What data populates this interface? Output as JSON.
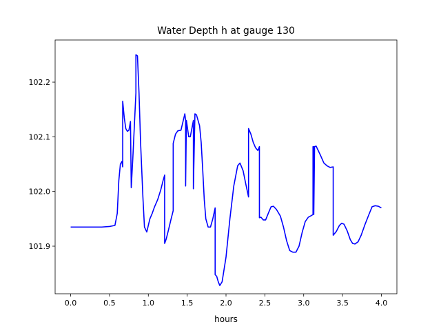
{
  "chart_data": {
    "type": "line",
    "title": "Water Depth h at gauge 130",
    "xlabel": "hours",
    "ylabel": "",
    "xlim": [
      -0.2,
      4.2
    ],
    "ylim": [
      101.813,
      102.277
    ],
    "xticks": [
      0.0,
      0.5,
      1.0,
      1.5,
      2.0,
      2.5,
      3.0,
      3.5,
      4.0
    ],
    "xtick_labels": [
      "0.0",
      "0.5",
      "1.0",
      "1.5",
      "2.0",
      "2.5",
      "3.0",
      "3.5",
      "4.0"
    ],
    "yticks": [
      101.9,
      102.0,
      102.1,
      102.2
    ],
    "ytick_labels": [
      "101.9",
      "102.0",
      "102.1",
      "102.2"
    ],
    "grid": false,
    "series": [
      {
        "color": "#0000ff",
        "points": [
          [
            0.0,
            101.935
          ],
          [
            0.3,
            101.935
          ],
          [
            0.4,
            101.935
          ],
          [
            0.5,
            101.936
          ],
          [
            0.57,
            101.938
          ],
          [
            0.6,
            101.96
          ],
          [
            0.62,
            102.02
          ],
          [
            0.64,
            102.05
          ],
          [
            0.66,
            102.055
          ],
          [
            0.67,
            102.045
          ],
          [
            0.67,
            102.165
          ],
          [
            0.69,
            102.135
          ],
          [
            0.71,
            102.115
          ],
          [
            0.73,
            102.11
          ],
          [
            0.75,
            102.112
          ],
          [
            0.77,
            102.128
          ],
          [
            0.78,
            102.007
          ],
          [
            0.8,
            102.06
          ],
          [
            0.82,
            102.12
          ],
          [
            0.84,
            102.18
          ],
          [
            0.84,
            102.25
          ],
          [
            0.86,
            102.248
          ],
          [
            0.88,
            102.18
          ],
          [
            0.9,
            102.09
          ],
          [
            0.93,
            101.99
          ],
          [
            0.95,
            101.935
          ],
          [
            0.98,
            101.926
          ],
          [
            1.0,
            101.938
          ],
          [
            1.02,
            101.95
          ],
          [
            1.05,
            101.96
          ],
          [
            1.08,
            101.972
          ],
          [
            1.12,
            101.985
          ],
          [
            1.16,
            102.003
          ],
          [
            1.19,
            102.02
          ],
          [
            1.21,
            102.03
          ],
          [
            1.21,
            101.905
          ],
          [
            1.23,
            101.913
          ],
          [
            1.26,
            101.93
          ],
          [
            1.29,
            101.948
          ],
          [
            1.32,
            101.965
          ],
          [
            1.32,
            102.088
          ],
          [
            1.35,
            102.105
          ],
          [
            1.38,
            102.111
          ],
          [
            1.42,
            102.112
          ],
          [
            1.45,
            102.13
          ],
          [
            1.47,
            102.142
          ],
          [
            1.48,
            102.13
          ],
          [
            1.48,
            102.01
          ],
          [
            1.49,
            102.13
          ],
          [
            1.51,
            102.11
          ],
          [
            1.52,
            102.1
          ],
          [
            1.54,
            102.1
          ],
          [
            1.56,
            102.115
          ],
          [
            1.58,
            102.13
          ],
          [
            1.58,
            102.005
          ],
          [
            1.6,
            102.142
          ],
          [
            1.62,
            102.14
          ],
          [
            1.64,
            102.13
          ],
          [
            1.66,
            102.12
          ],
          [
            1.68,
            102.09
          ],
          [
            1.7,
            102.04
          ],
          [
            1.72,
            101.985
          ],
          [
            1.74,
            101.95
          ],
          [
            1.77,
            101.935
          ],
          [
            1.8,
            101.935
          ],
          [
            1.83,
            101.95
          ],
          [
            1.86,
            101.97
          ],
          [
            1.86,
            101.848
          ],
          [
            1.88,
            101.845
          ],
          [
            1.9,
            101.835
          ],
          [
            1.92,
            101.828
          ],
          [
            1.95,
            101.835
          ],
          [
            2.0,
            101.88
          ],
          [
            2.05,
            101.95
          ],
          [
            2.1,
            102.01
          ],
          [
            2.15,
            102.047
          ],
          [
            2.18,
            102.052
          ],
          [
            2.22,
            102.038
          ],
          [
            2.26,
            102.01
          ],
          [
            2.29,
            101.99
          ],
          [
            2.29,
            102.115
          ],
          [
            2.32,
            102.105
          ],
          [
            2.35,
            102.09
          ],
          [
            2.38,
            102.08
          ],
          [
            2.41,
            102.075
          ],
          [
            2.43,
            102.082
          ],
          [
            2.43,
            101.952
          ],
          [
            2.45,
            101.953
          ],
          [
            2.48,
            101.948
          ],
          [
            2.51,
            101.948
          ],
          [
            2.55,
            101.962
          ],
          [
            2.58,
            101.972
          ],
          [
            2.61,
            101.973
          ],
          [
            2.65,
            101.967
          ],
          [
            2.7,
            101.955
          ],
          [
            2.74,
            101.935
          ],
          [
            2.78,
            101.91
          ],
          [
            2.82,
            101.892
          ],
          [
            2.86,
            101.889
          ],
          [
            2.9,
            101.889
          ],
          [
            2.94,
            101.9
          ],
          [
            2.98,
            101.925
          ],
          [
            3.02,
            101.945
          ],
          [
            3.06,
            101.953
          ],
          [
            3.1,
            101.956
          ],
          [
            3.12,
            101.958
          ],
          [
            3.12,
            102.082
          ],
          [
            3.13,
            102.082
          ],
          [
            3.13,
            101.958
          ],
          [
            3.14,
            102.082
          ],
          [
            3.16,
            102.083
          ],
          [
            3.18,
            102.077
          ],
          [
            3.22,
            102.065
          ],
          [
            3.26,
            102.052
          ],
          [
            3.3,
            102.047
          ],
          [
            3.34,
            102.044
          ],
          [
            3.38,
            102.045
          ],
          [
            3.38,
            101.92
          ],
          [
            3.42,
            101.927
          ],
          [
            3.46,
            101.938
          ],
          [
            3.49,
            101.942
          ],
          [
            3.52,
            101.94
          ],
          [
            3.56,
            101.928
          ],
          [
            3.6,
            101.912
          ],
          [
            3.63,
            101.905
          ],
          [
            3.66,
            101.904
          ],
          [
            3.7,
            101.908
          ],
          [
            3.74,
            101.92
          ],
          [
            3.79,
            101.94
          ],
          [
            3.84,
            101.958
          ],
          [
            3.88,
            101.972
          ],
          [
            3.92,
            101.974
          ],
          [
            3.96,
            101.973
          ],
          [
            4.0,
            101.97
          ]
        ]
      }
    ]
  }
}
